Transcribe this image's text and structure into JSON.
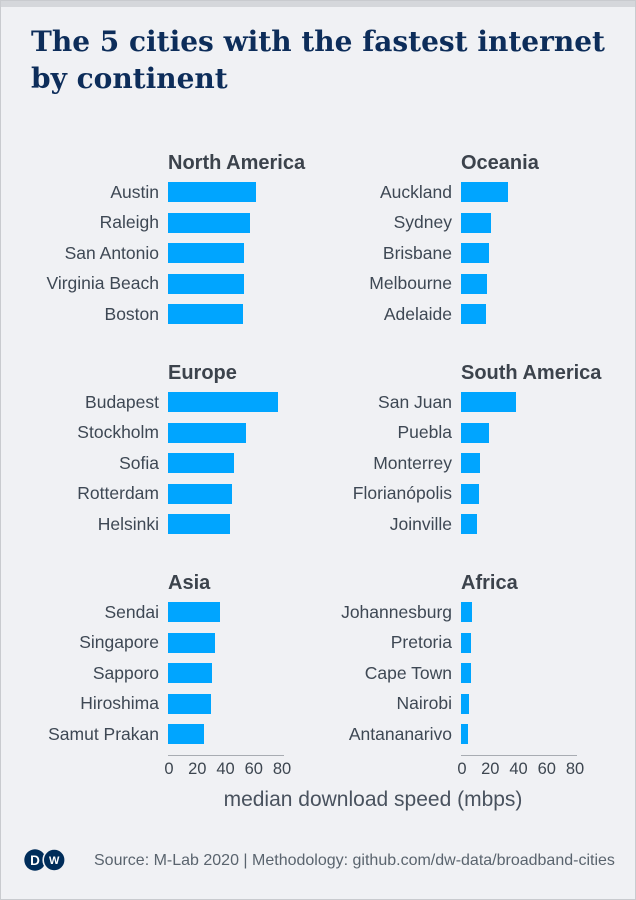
{
  "title": {
    "line1": "The 5 cities with the fastest internet",
    "line2": "by continent"
  },
  "axis": {
    "max": 80,
    "ticks": [
      0,
      20,
      40,
      60,
      80
    ],
    "label": "median download speed (mbps)"
  },
  "footer": {
    "source": "Source: M-Lab 2020 | Methodology: github.com/dw-data/broadband-cities",
    "logo_d": "D",
    "logo_w": "W"
  },
  "colors": {
    "bar": "#00a5ff",
    "title": "#0d2d5a",
    "heading": "#3c434c",
    "label": "#3e4854",
    "axis_line": "#a8acb2",
    "background": "#f0f1f4",
    "top_bar": "#d5d7db",
    "logo": "#002d5a"
  },
  "chart_data": [
    {
      "type": "bar",
      "orientation": "horizontal",
      "title": "North America",
      "categories": [
        "Austin",
        "Raleigh",
        "San Antonio",
        "Virginia Beach",
        "Boston"
      ],
      "values": [
        62,
        58,
        54,
        53.5,
        53
      ],
      "xlim": [
        0,
        80
      ],
      "xlabel": "median download speed (mbps)",
      "grid": false
    },
    {
      "type": "bar",
      "orientation": "horizontal",
      "title": "Oceania",
      "categories": [
        "Auckland",
        "Sydney",
        "Brisbane",
        "Melbourne",
        "Adelaide"
      ],
      "values": [
        33,
        21,
        19.5,
        18.5,
        17.5
      ],
      "xlim": [
        0,
        80
      ],
      "xlabel": "median download speed (mbps)",
      "grid": false
    },
    {
      "type": "bar",
      "orientation": "horizontal",
      "title": "Europe",
      "categories": [
        "Budapest",
        "Stockholm",
        "Sofia",
        "Rotterdam",
        "Helsinki"
      ],
      "values": [
        78,
        55,
        47,
        45.5,
        44
      ],
      "xlim": [
        0,
        80
      ],
      "xlabel": "median download speed (mbps)",
      "grid": false
    },
    {
      "type": "bar",
      "orientation": "horizontal",
      "title": "South America",
      "categories": [
        "San Juan",
        "Puebla",
        "Monterrey",
        "Florianópolis",
        "Joinville"
      ],
      "values": [
        39,
        20,
        13.5,
        13,
        11.5
      ],
      "xlim": [
        0,
        80
      ],
      "xlabel": "median download speed (mbps)",
      "grid": false
    },
    {
      "type": "bar",
      "orientation": "horizontal",
      "title": "Asia",
      "categories": [
        "Sendai",
        "Singapore",
        "Sapporo",
        "Hiroshima",
        "Samut Prakan"
      ],
      "values": [
        37,
        33.5,
        31,
        30.5,
        25.5
      ],
      "xlim": [
        0,
        80
      ],
      "xlabel": "median download speed (mbps)",
      "grid": false
    },
    {
      "type": "bar",
      "orientation": "horizontal",
      "title": "Africa",
      "categories": [
        "Johannesburg",
        "Pretoria",
        "Cape Town",
        "Nairobi",
        "Antananarivo"
      ],
      "values": [
        7.5,
        7,
        7,
        5.5,
        5
      ],
      "xlim": [
        0,
        80
      ],
      "xlabel": "median download speed (mbps)",
      "grid": false
    }
  ]
}
